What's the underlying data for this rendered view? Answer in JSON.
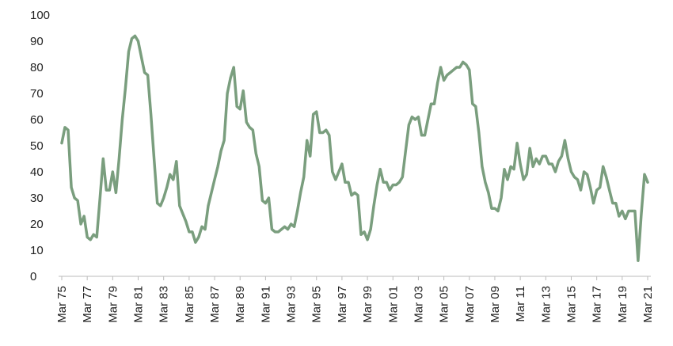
{
  "chart_data": {
    "type": "line",
    "color": "#7a9e7e",
    "ylim": [
      0,
      100
    ],
    "yticks": [
      0,
      10,
      20,
      30,
      40,
      50,
      60,
      70,
      80,
      90,
      100
    ],
    "grid": false,
    "categories": [
      "Mar 75",
      null,
      null,
      null,
      null,
      null,
      null,
      null,
      "Mar 77",
      null,
      null,
      null,
      null,
      null,
      null,
      null,
      "Mar 79",
      null,
      null,
      null,
      null,
      null,
      null,
      null,
      "Mar 81",
      null,
      null,
      null,
      null,
      null,
      null,
      null,
      "Mar 83",
      null,
      null,
      null,
      null,
      null,
      null,
      null,
      "Mar 85",
      null,
      null,
      null,
      null,
      null,
      null,
      null,
      "Mar 87",
      null,
      null,
      null,
      null,
      null,
      null,
      null,
      "Mar 89",
      null,
      null,
      null,
      null,
      null,
      null,
      null,
      "Mar 91",
      null,
      null,
      null,
      null,
      null,
      null,
      null,
      "Mar 93",
      null,
      null,
      null,
      null,
      null,
      null,
      null,
      "Mar 95",
      null,
      null,
      null,
      null,
      null,
      null,
      null,
      "Mar 97",
      null,
      null,
      null,
      null,
      null,
      null,
      null,
      "Mar 99",
      null,
      null,
      null,
      null,
      null,
      null,
      null,
      "Mar 01",
      null,
      null,
      null,
      null,
      null,
      null,
      null,
      "Mar 03",
      null,
      null,
      null,
      null,
      null,
      null,
      null,
      "Mar 05",
      null,
      null,
      null,
      null,
      null,
      null,
      null,
      "Mar 07",
      null,
      null,
      null,
      null,
      null,
      null,
      null,
      "Mar 09",
      null,
      null,
      null,
      null,
      null,
      null,
      null,
      "Mar 11",
      null,
      null,
      null,
      null,
      null,
      null,
      null,
      "Mar 13",
      null,
      null,
      null,
      null,
      null,
      null,
      null,
      "Mar 15",
      null,
      null,
      null,
      null,
      null,
      null,
      null,
      "Mar 17",
      null,
      null,
      null,
      null,
      null,
      null,
      null,
      "Mar 19",
      null,
      null,
      null,
      null,
      null,
      null,
      null,
      "Mar 21"
    ],
    "values": [
      51,
      57,
      56,
      34,
      30,
      29,
      20,
      23,
      15,
      14,
      16,
      15,
      30,
      45,
      33,
      33,
      40,
      32,
      45,
      60,
      72,
      86,
      91,
      92,
      90,
      84,
      78,
      77,
      62,
      45,
      28,
      27,
      30,
      34,
      39,
      37,
      44,
      27,
      24,
      21,
      17,
      17,
      13,
      15,
      19,
      18,
      27,
      32,
      37,
      42,
      48,
      52,
      70,
      76,
      80,
      65,
      64,
      71,
      59,
      57,
      56,
      47,
      42,
      29,
      28,
      30,
      18,
      17,
      17,
      18,
      19,
      18,
      20,
      19,
      25,
      32,
      38,
      52,
      46,
      62,
      63,
      55,
      55,
      56,
      54,
      40,
      37,
      40,
      43,
      36,
      36,
      31,
      32,
      31,
      16,
      17,
      14,
      18,
      27,
      35,
      41,
      36,
      36,
      33,
      35,
      35,
      36,
      38,
      48,
      58,
      61,
      60,
      61,
      54,
      54,
      60,
      66,
      66,
      74,
      80,
      75,
      77,
      78,
      79,
      80,
      80,
      82,
      81,
      79,
      66,
      65,
      55,
      42,
      36,
      32,
      26,
      26,
      25,
      30,
      41,
      37,
      42,
      41,
      51,
      43,
      37,
      39,
      49,
      42,
      45,
      43,
      46,
      46,
      43,
      43,
      40,
      44,
      46,
      52,
      45,
      40,
      38,
      37,
      33,
      40,
      39,
      34,
      28,
      33,
      34,
      42,
      38,
      33,
      28,
      28,
      23,
      25,
      22,
      25,
      25,
      25,
      6,
      24,
      39,
      36
    ]
  }
}
